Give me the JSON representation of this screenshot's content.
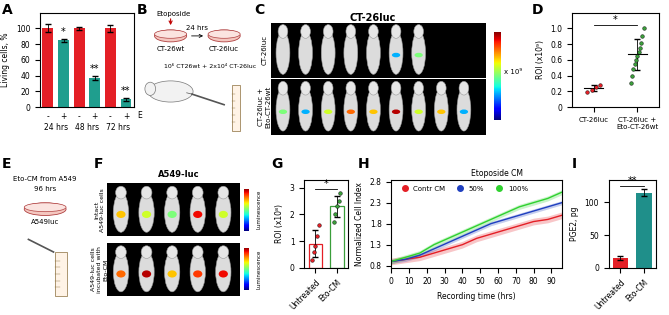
{
  "chart_data": [
    {
      "panel": "A",
      "type": "bar",
      "categories": [
        "-",
        "+",
        "-",
        "+",
        "-",
        "+"
      ],
      "values": [
        100,
        85,
        100,
        37,
        100,
        10
      ],
      "errors": [
        5,
        2,
        2,
        3,
        4,
        2
      ],
      "colors": [
        "#e41f26",
        "#1f9e8e",
        "#e41f26",
        "#1f9e8e",
        "#e41f26",
        "#1f9e8e"
      ],
      "groups": [
        "24 hrs",
        "48 hrs",
        "72 hrs"
      ],
      "annotations": [
        "*",
        "**",
        "**"
      ],
      "row_label": "E",
      "y_label": "Living cells, %",
      "ylim": [
        0,
        120
      ],
      "yticks": [
        0,
        20,
        40,
        60,
        80,
        100
      ]
    },
    {
      "panel": "D",
      "type": "scatter",
      "categories": [
        "CT-26luc",
        "CT-26luc + Eto-CT-26wt"
      ],
      "points": [
        [
          0.19,
          0.22,
          0.25,
          0.28
        ],
        [
          0.3,
          0.4,
          0.48,
          0.55,
          0.6,
          0.65,
          0.7,
          0.75,
          0.82,
          0.9,
          1.0
        ]
      ],
      "values": [
        0.24,
        0.67
      ],
      "errors": [
        0.04,
        0.2
      ],
      "colors": [
        "#e41f26",
        "#3a9e3a"
      ],
      "annotation": "*",
      "y_label": "ROI (x10⁹)",
      "ylim": [
        0,
        1.2
      ],
      "yticks": [
        0,
        0.2,
        0.4,
        0.6,
        0.8,
        1.0
      ]
    },
    {
      "panel": "G",
      "type": "bar",
      "categories": [
        "Untreated",
        "Eto-CM"
      ],
      "values": [
        0.9,
        2.3
      ],
      "errors": [
        0.5,
        0.4
      ],
      "points": [
        [
          0.3,
          0.6,
          0.8,
          1.2,
          1.6
        ],
        [
          1.7,
          2.0,
          2.3,
          2.5,
          2.8
        ]
      ],
      "colors": [
        "#e41f26",
        "#3a9e3a"
      ],
      "annotation": "*",
      "y_label": "ROI (x10⁸)",
      "ylim": [
        0,
        3.3
      ],
      "yticks": [
        0,
        1,
        2,
        3
      ]
    },
    {
      "panel": "H",
      "type": "line",
      "x": [
        0,
        8,
        16,
        24,
        32,
        40,
        48,
        56,
        64,
        72,
        80,
        88,
        96
      ],
      "series": [
        {
          "name": "Contr CM",
          "color": "#e41f26",
          "error": 0.08,
          "values": [
            0.9,
            0.95,
            1.0,
            1.1,
            1.2,
            1.3,
            1.45,
            1.55,
            1.65,
            1.75,
            1.85,
            1.9,
            2.0
          ]
        },
        {
          "name": "50%",
          "color": "#1f3fbf",
          "error": 0.05,
          "values": [
            0.9,
            0.95,
            1.05,
            1.2,
            1.35,
            1.5,
            1.65,
            1.8,
            1.9,
            2.0,
            2.1,
            2.2,
            2.3
          ]
        },
        {
          "name": "100%",
          "color": "#2fd12f",
          "error": 0.06,
          "values": [
            0.9,
            1.0,
            1.1,
            1.3,
            1.45,
            1.6,
            1.75,
            1.9,
            2.05,
            2.2,
            2.3,
            2.4,
            2.55
          ]
        }
      ],
      "legend": "upper left",
      "legend_group": "Etoposide CM",
      "x_label": "Recording time (hrs)",
      "y_label": "Normalized Cell Index",
      "xlim": [
        0,
        96
      ],
      "xticks": [
        0,
        10,
        20,
        30,
        40,
        50,
        60,
        70,
        80,
        90
      ],
      "ylim": [
        0.75,
        2.85
      ],
      "yticks": [
        0.8,
        1.3,
        1.8,
        2.3,
        2.8
      ]
    },
    {
      "panel": "I",
      "type": "bar",
      "categories": [
        "Untreated",
        "Eto-CM"
      ],
      "values": [
        15,
        115
      ],
      "errors": [
        3,
        5
      ],
      "colors": [
        "#e41f26",
        "#1f8f8a"
      ],
      "annotation": "**",
      "y_label": "PGE2, pg",
      "ylim": [
        0,
        135
      ],
      "yticks": [
        0,
        50,
        100
      ]
    }
  ],
  "panels": [
    {
      "panel": "B",
      "texts": {
        "drug": "Etoposide",
        "time": "24 hrs",
        "donor": "CT-26wt",
        "recipient": "CT-26luc",
        "injection": "10⁶ CT26wt + 2x10⁴ CT-26luc"
      }
    },
    {
      "panel": "C",
      "title": "CT-26luc",
      "rows": [
        "CT-26luc",
        "CT-26luc + Eto-CT-26wt"
      ],
      "colorbar_label": "x 10⁹"
    },
    {
      "panel": "E",
      "texts": {
        "title": "Eto-CM from A549",
        "time": "96 hrs",
        "cells": "A549luc"
      }
    },
    {
      "panel": "F",
      "title": "A549-luc",
      "rows": [
        "Intact A549-luc cells",
        "A549-luc cells incubated with Eto-CM"
      ],
      "colorbar_label": "Luminescence"
    }
  ]
}
